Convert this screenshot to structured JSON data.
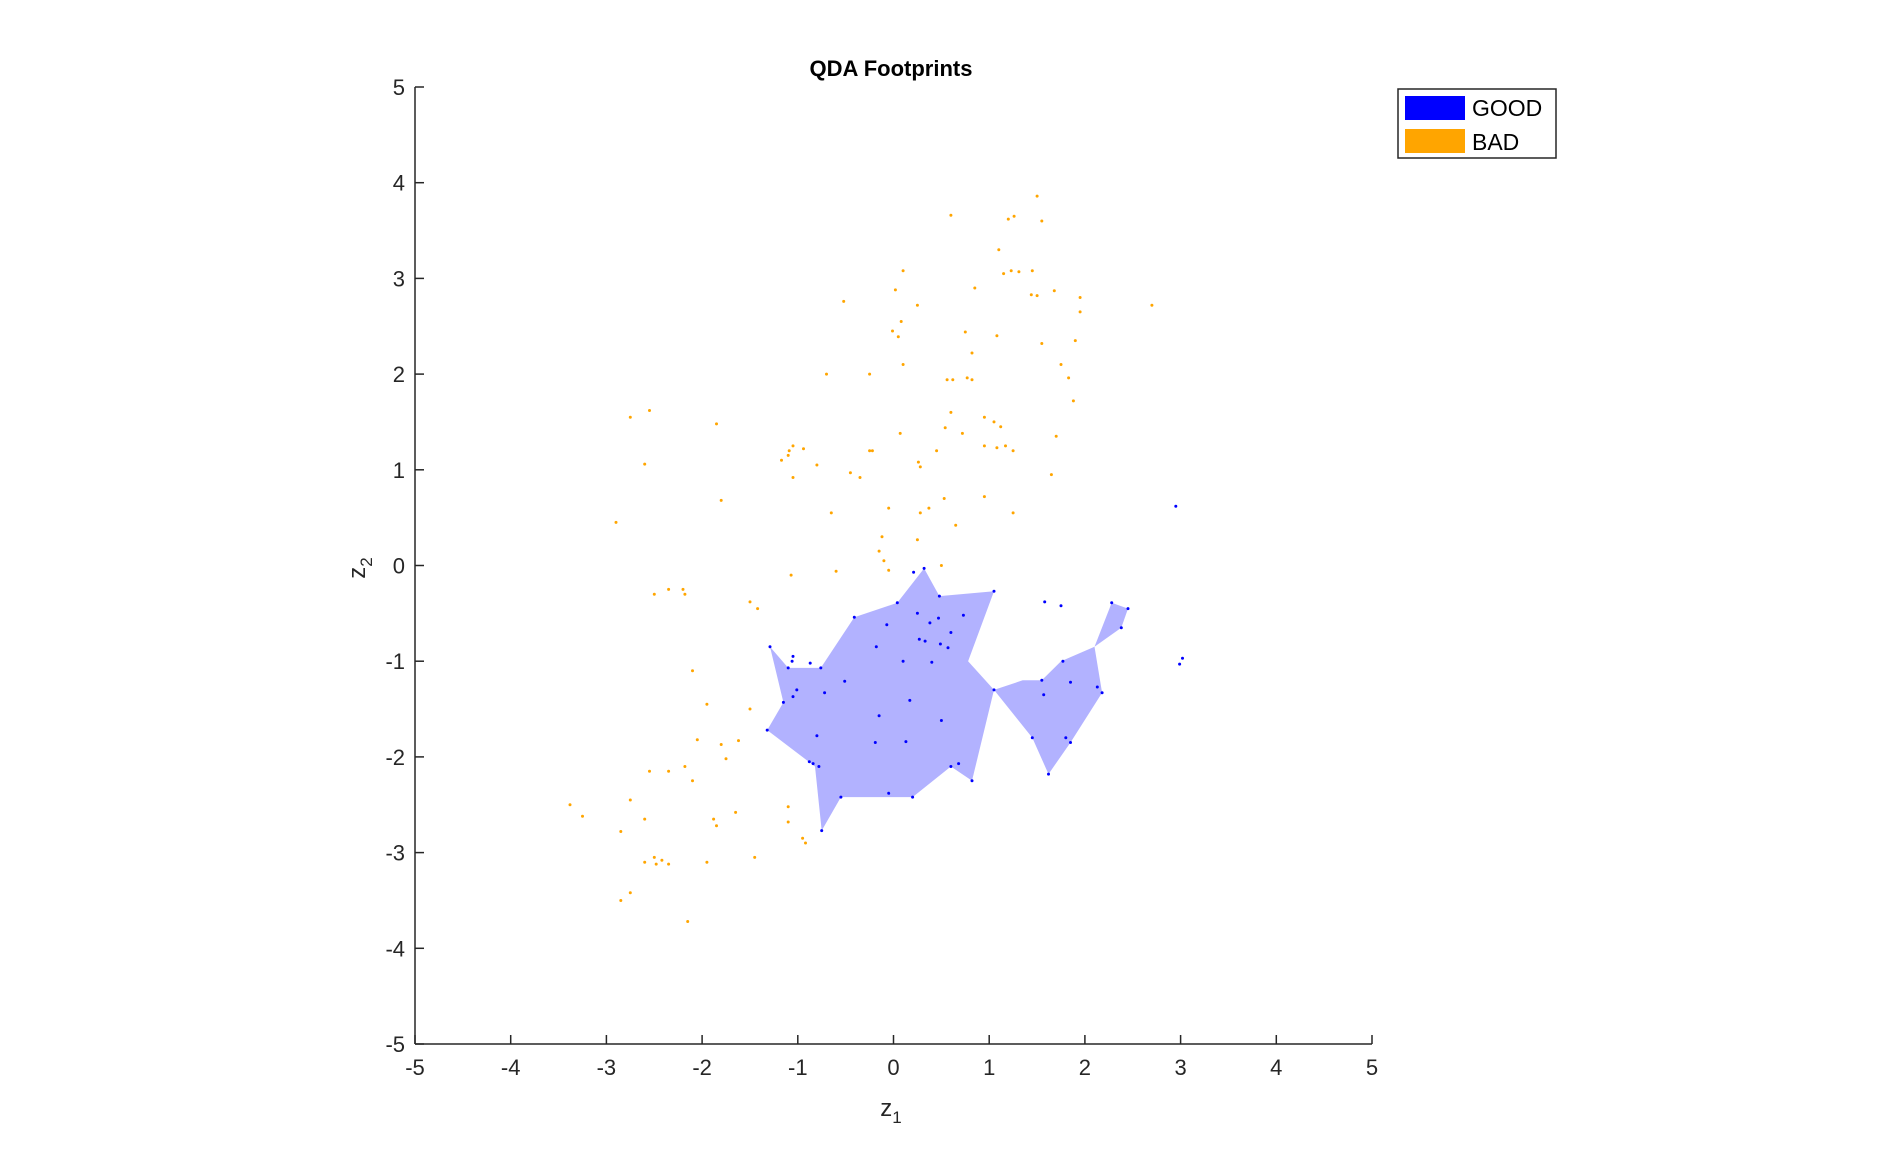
{
  "chart_data": {
    "type": "scatter",
    "title": "QDA Footprints",
    "xlabel": "z",
    "xlabel_sub": "1",
    "ylabel": "z",
    "ylabel_sub": "2",
    "xlim": [
      -5,
      5
    ],
    "ylim": [
      -5,
      5
    ],
    "xticks": [
      -5,
      -4,
      -3,
      -2,
      -1,
      0,
      1,
      2,
      3,
      4,
      5
    ],
    "yticks": [
      -5,
      -4,
      -3,
      -2,
      -1,
      0,
      1,
      2,
      3,
      4,
      5
    ],
    "grid": false,
    "legend_position": "top-right",
    "legend": [
      {
        "label": "GOOD",
        "color": "#0000ff"
      },
      {
        "label": "BAD",
        "color": "#ffa500"
      }
    ],
    "footprints": [
      {
        "name": "GOOD",
        "color": "#0000ff",
        "fill_opacity": 0.3,
        "polygons": [
          [
            [
              -1.29,
              -0.85
            ],
            [
              -1.1,
              -1.07
            ],
            [
              -0.76,
              -1.07
            ],
            [
              -0.41,
              -0.54
            ],
            [
              0.04,
              -0.39
            ],
            [
              0.32,
              -0.03
            ],
            [
              0.48,
              -0.32
            ],
            [
              1.05,
              -0.27
            ],
            [
              0.78,
              -1.0
            ],
            [
              1.05,
              -1.3
            ],
            [
              0.82,
              -2.25
            ],
            [
              0.6,
              -2.1
            ],
            [
              0.2,
              -2.42
            ],
            [
              -0.55,
              -2.42
            ],
            [
              -0.75,
              -2.77
            ],
            [
              -0.82,
              -2.1
            ],
            [
              -1.32,
              -1.72
            ],
            [
              -1.15,
              -1.43
            ]
          ],
          [
            [
              1.05,
              -1.3
            ],
            [
              1.35,
              -1.2
            ],
            [
              1.55,
              -1.2
            ],
            [
              1.75,
              -1.0
            ],
            [
              2.1,
              -0.85
            ],
            [
              2.18,
              -1.33
            ],
            [
              1.85,
              -1.85
            ],
            [
              1.62,
              -2.18
            ],
            [
              1.45,
              -1.8
            ]
          ],
          [
            [
              2.1,
              -0.85
            ],
            [
              2.28,
              -0.39
            ],
            [
              2.45,
              -0.45
            ],
            [
              2.38,
              -0.65
            ]
          ]
        ]
      }
    ],
    "series": [
      {
        "name": "GOOD",
        "color": "#0000ff",
        "points": [
          [
            -1.29,
            -0.85
          ],
          [
            -1.05,
            -0.95
          ],
          [
            -1.06,
            -1.0
          ],
          [
            -0.87,
            -1.02
          ],
          [
            -0.76,
            -1.07
          ],
          [
            -0.41,
            -0.54
          ],
          [
            -0.18,
            -0.85
          ],
          [
            -0.07,
            -0.62
          ],
          [
            0.04,
            -0.39
          ],
          [
            0.21,
            -0.07
          ],
          [
            0.32,
            -0.03
          ],
          [
            0.48,
            -0.32
          ],
          [
            0.25,
            -0.5
          ],
          [
            0.38,
            -0.6
          ],
          [
            0.47,
            -0.55
          ],
          [
            0.6,
            -0.7
          ],
          [
            0.73,
            -0.52
          ],
          [
            0.27,
            -0.77
          ],
          [
            0.33,
            -0.79
          ],
          [
            0.49,
            -0.82
          ],
          [
            0.57,
            -0.86
          ],
          [
            0.4,
            -1.01
          ],
          [
            0.1,
            -1.0
          ],
          [
            1.05,
            -0.27
          ],
          [
            -1.1,
            -1.07
          ],
          [
            -1.15,
            -1.43
          ],
          [
            -1.05,
            -1.37
          ],
          [
            -1.01,
            -1.3
          ],
          [
            -0.72,
            -1.33
          ],
          [
            -0.51,
            -1.21
          ],
          [
            0.17,
            -1.41
          ],
          [
            -0.15,
            -1.57
          ],
          [
            -1.32,
            -1.72
          ],
          [
            -0.8,
            -1.78
          ],
          [
            -0.19,
            -1.85
          ],
          [
            0.13,
            -1.84
          ],
          [
            0.5,
            -1.62
          ],
          [
            -0.88,
            -2.05
          ],
          [
            -0.84,
            -2.07
          ],
          [
            -0.78,
            -2.1
          ],
          [
            -0.55,
            -2.42
          ],
          [
            -0.75,
            -2.77
          ],
          [
            0.6,
            -2.1
          ],
          [
            0.68,
            -2.07
          ],
          [
            0.82,
            -2.25
          ],
          [
            -0.05,
            -2.38
          ],
          [
            0.2,
            -2.42
          ],
          [
            1.05,
            -1.3
          ],
          [
            1.55,
            -1.2
          ],
          [
            1.57,
            -1.35
          ],
          [
            1.77,
            -1.0
          ],
          [
            1.85,
            -1.22
          ],
          [
            2.13,
            -1.27
          ],
          [
            2.18,
            -1.33
          ],
          [
            1.8,
            -1.8
          ],
          [
            1.85,
            -1.85
          ],
          [
            1.45,
            -1.8
          ],
          [
            1.62,
            -2.18
          ],
          [
            1.58,
            -0.38
          ],
          [
            1.75,
            -0.42
          ],
          [
            2.28,
            -0.39
          ],
          [
            2.45,
            -0.45
          ],
          [
            2.38,
            -0.65
          ],
          [
            2.95,
            0.62
          ],
          [
            3.02,
            -0.97
          ],
          [
            2.99,
            -1.03
          ]
        ]
      },
      {
        "name": "BAD",
        "color": "#ffa500",
        "points": [
          [
            1.5,
            3.86
          ],
          [
            0.6,
            3.66
          ],
          [
            1.26,
            3.65
          ],
          [
            1.2,
            3.62
          ],
          [
            1.55,
            3.6
          ],
          [
            1.1,
            3.3
          ],
          [
            0.1,
            3.08
          ],
          [
            1.23,
            3.08
          ],
          [
            1.45,
            3.08
          ],
          [
            1.15,
            3.05
          ],
          [
            1.31,
            3.07
          ],
          [
            0.02,
            2.88
          ],
          [
            0.85,
            2.9
          ],
          [
            1.5,
            2.82
          ],
          [
            1.44,
            2.83
          ],
          [
            1.95,
            2.8
          ],
          [
            1.68,
            2.87
          ],
          [
            -0.52,
            2.76
          ],
          [
            0.25,
            2.72
          ],
          [
            2.7,
            2.72
          ],
          [
            1.95,
            2.65
          ],
          [
            -0.01,
            2.45
          ],
          [
            0.75,
            2.44
          ],
          [
            0.08,
            2.55
          ],
          [
            0.05,
            2.39
          ],
          [
            1.08,
            2.4
          ],
          [
            1.55,
            2.32
          ],
          [
            1.9,
            2.35
          ],
          [
            0.82,
            2.22
          ],
          [
            0.1,
            2.1
          ],
          [
            1.75,
            2.1
          ],
          [
            -0.7,
            2.0
          ],
          [
            -0.25,
            2.0
          ],
          [
            0.56,
            1.94
          ],
          [
            0.62,
            1.94
          ],
          [
            0.77,
            1.96
          ],
          [
            0.82,
            1.94
          ],
          [
            1.83,
            1.96
          ],
          [
            1.88,
            1.72
          ],
          [
            -2.75,
            1.55
          ],
          [
            -2.55,
            1.62
          ],
          [
            -1.85,
            1.48
          ],
          [
            0.6,
            1.6
          ],
          [
            0.95,
            1.55
          ],
          [
            1.05,
            1.5
          ],
          [
            1.12,
            1.45
          ],
          [
            0.54,
            1.44
          ],
          [
            0.72,
            1.38
          ],
          [
            0.07,
            1.38
          ],
          [
            1.7,
            1.35
          ],
          [
            -0.94,
            1.22
          ],
          [
            -1.05,
            1.25
          ],
          [
            -1.09,
            1.2
          ],
          [
            -1.1,
            1.15
          ],
          [
            -1.17,
            1.1
          ],
          [
            -0.25,
            1.2
          ],
          [
            -0.22,
            1.2
          ],
          [
            0.45,
            1.2
          ],
          [
            1.08,
            1.23
          ],
          [
            1.17,
            1.25
          ],
          [
            0.95,
            1.25
          ],
          [
            1.25,
            1.2
          ],
          [
            0.26,
            1.08
          ],
          [
            0.28,
            1.03
          ],
          [
            -0.8,
            1.05
          ],
          [
            -0.45,
            0.97
          ],
          [
            -0.35,
            0.92
          ],
          [
            -2.6,
            1.06
          ],
          [
            -1.05,
            0.92
          ],
          [
            1.65,
            0.95
          ],
          [
            -1.8,
            0.68
          ],
          [
            0.53,
            0.7
          ],
          [
            0.95,
            0.72
          ],
          [
            -0.05,
            0.6
          ],
          [
            -0.65,
            0.55
          ],
          [
            0.28,
            0.55
          ],
          [
            0.37,
            0.6
          ],
          [
            1.25,
            0.55
          ],
          [
            -2.9,
            0.45
          ],
          [
            0.65,
            0.42
          ],
          [
            -0.12,
            0.3
          ],
          [
            0.25,
            0.27
          ],
          [
            -0.15,
            0.15
          ],
          [
            -0.1,
            0.05
          ],
          [
            0.5,
            0.0
          ],
          [
            -0.05,
            -0.05
          ],
          [
            -0.6,
            -0.06
          ],
          [
            -1.07,
            -0.1
          ],
          [
            -2.35,
            -0.25
          ],
          [
            -2.2,
            -0.25
          ],
          [
            -2.5,
            -0.3
          ],
          [
            -2.18,
            -0.3
          ],
          [
            -1.5,
            -0.38
          ],
          [
            -1.42,
            -0.45
          ],
          [
            -2.1,
            -1.1
          ],
          [
            -1.95,
            -1.45
          ],
          [
            -1.5,
            -1.5
          ],
          [
            -2.05,
            -1.82
          ],
          [
            -1.8,
            -1.87
          ],
          [
            -1.62,
            -1.83
          ],
          [
            -1.75,
            -2.02
          ],
          [
            -2.55,
            -2.15
          ],
          [
            -2.35,
            -2.15
          ],
          [
            -2.18,
            -2.1
          ],
          [
            -2.1,
            -2.25
          ],
          [
            -2.75,
            -2.45
          ],
          [
            -1.65,
            -2.58
          ],
          [
            -3.38,
            -2.5
          ],
          [
            -3.25,
            -2.62
          ],
          [
            -2.6,
            -2.65
          ],
          [
            -1.88,
            -2.65
          ],
          [
            -1.85,
            -2.72
          ],
          [
            -1.1,
            -2.52
          ],
          [
            -1.1,
            -2.68
          ],
          [
            -2.85,
            -2.78
          ],
          [
            -0.95,
            -2.85
          ],
          [
            -0.92,
            -2.9
          ],
          [
            -2.5,
            -3.05
          ],
          [
            -2.42,
            -3.08
          ],
          [
            -2.6,
            -3.1
          ],
          [
            -1.45,
            -3.05
          ],
          [
            -2.35,
            -3.12
          ],
          [
            -2.48,
            -3.12
          ],
          [
            -1.95,
            -3.1
          ],
          [
            -2.75,
            -3.42
          ],
          [
            -2.85,
            -3.5
          ],
          [
            -2.15,
            -3.72
          ]
        ]
      }
    ]
  }
}
